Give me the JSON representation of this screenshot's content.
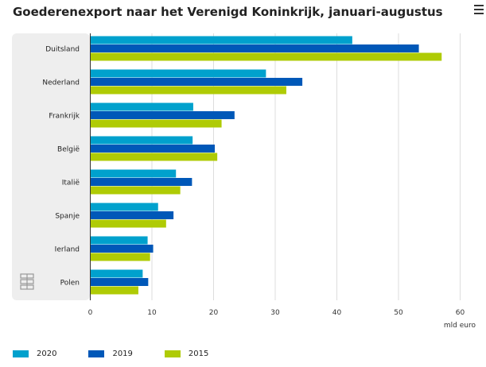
{
  "title": "Goederenexport naar het Verenigd Koninkrijk, januari-augustus",
  "icons": {
    "menu": "hamburger-menu-icon",
    "logo": "cbs-logo-icon"
  },
  "chart_data": {
    "type": "bar",
    "orientation": "horizontal",
    "categories": [
      "Duitsland",
      "Nederland",
      "Frankrijk",
      "België",
      "Italië",
      "Spanje",
      "Ierland",
      "Polen"
    ],
    "series": [
      {
        "name": "2020",
        "color": "#00a1cd",
        "values": [
          42.5,
          28.5,
          16.7,
          16.6,
          13.9,
          11.0,
          9.3,
          8.5
        ]
      },
      {
        "name": "2019",
        "color": "#0058b8",
        "values": [
          53.3,
          34.4,
          23.4,
          20.2,
          16.5,
          13.5,
          10.2,
          9.4
        ]
      },
      {
        "name": "2015",
        "color": "#afcb05",
        "values": [
          57.0,
          31.8,
          21.3,
          20.6,
          14.6,
          12.3,
          9.7,
          7.8
        ]
      }
    ],
    "xlim": [
      0,
      60
    ],
    "xticks": [
      0,
      10,
      20,
      30,
      40,
      50,
      60
    ],
    "xlabel": "mld euro",
    "grid": true,
    "legend": "bottom"
  }
}
